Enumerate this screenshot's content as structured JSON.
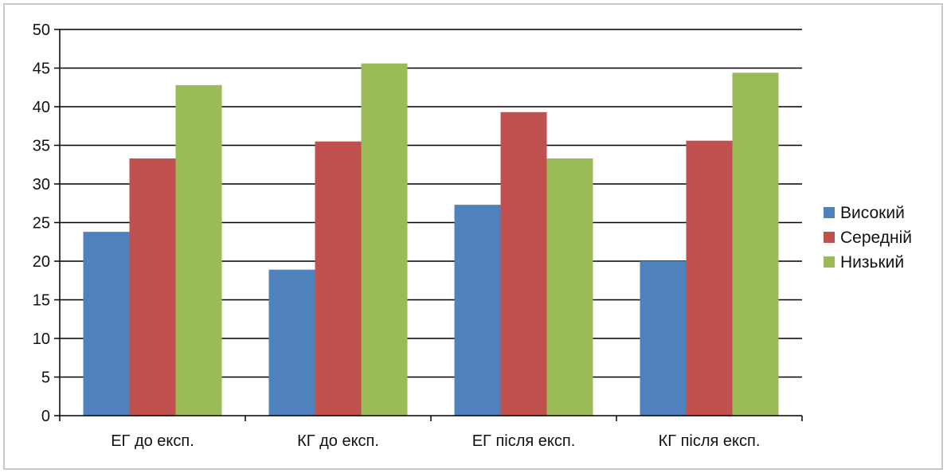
{
  "chart_data": {
    "type": "bar",
    "title": "",
    "xlabel": "",
    "ylabel": "",
    "categories": [
      "ЕГ до експ.",
      "КГ до експ.",
      "ЕГ після експ.",
      "КГ після експ."
    ],
    "series": [
      {
        "name": "Високий",
        "color": "#4F81BD",
        "values": [
          23.8,
          18.9,
          27.3,
          20.0
        ]
      },
      {
        "name": "Середній",
        "color": "#C0504D",
        "values": [
          33.3,
          35.5,
          39.3,
          35.6
        ]
      },
      {
        "name": "Низький",
        "color": "#9BBB59",
        "values": [
          42.8,
          45.6,
          33.3,
          44.4
        ]
      }
    ],
    "ylim": [
      0,
      50
    ],
    "yticks": [
      0,
      5,
      10,
      15,
      20,
      25,
      30,
      35,
      40,
      45,
      50
    ],
    "grid": true,
    "legend_position": "right"
  }
}
